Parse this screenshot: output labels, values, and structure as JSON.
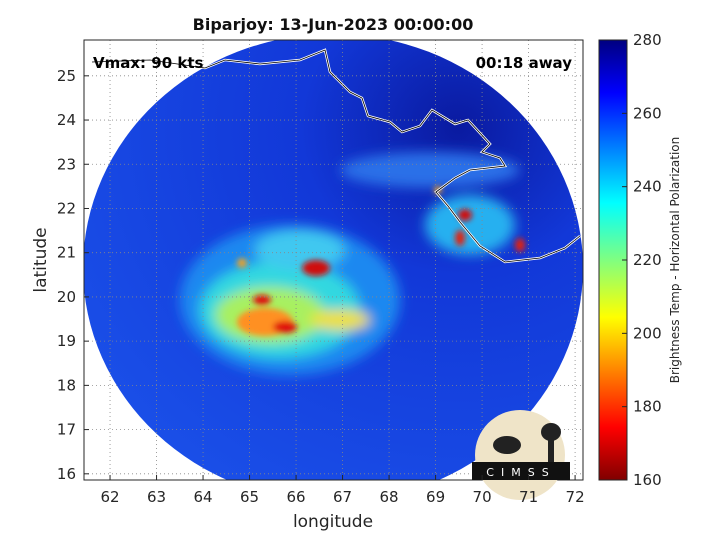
{
  "chart_data": {
    "type": "image",
    "title": "Biparjoy: 13-Jun-2023 00:00:00",
    "xlabel": "longitude",
    "ylabel": "latitude",
    "xlim": [
      61.44,
      72.17
    ],
    "ylim": [
      15.86,
      25.81
    ],
    "xticks": [
      62,
      63,
      64,
      65,
      66,
      67,
      68,
      69,
      70,
      71,
      72
    ],
    "yticks": [
      16,
      17,
      18,
      19,
      20,
      21,
      22,
      23,
      24,
      25
    ],
    "grid": true,
    "annotations": [
      "Vmax: 90 kts",
      "00:18 away"
    ],
    "colorbar": {
      "label": "Brightness Temp - Horizontal Polarization",
      "lim": [
        160,
        280
      ],
      "ticks": [
        160,
        180,
        200,
        220,
        240,
        260,
        280
      ],
      "colormap": "jet-reversed"
    },
    "logo_text": "CIMSS"
  }
}
